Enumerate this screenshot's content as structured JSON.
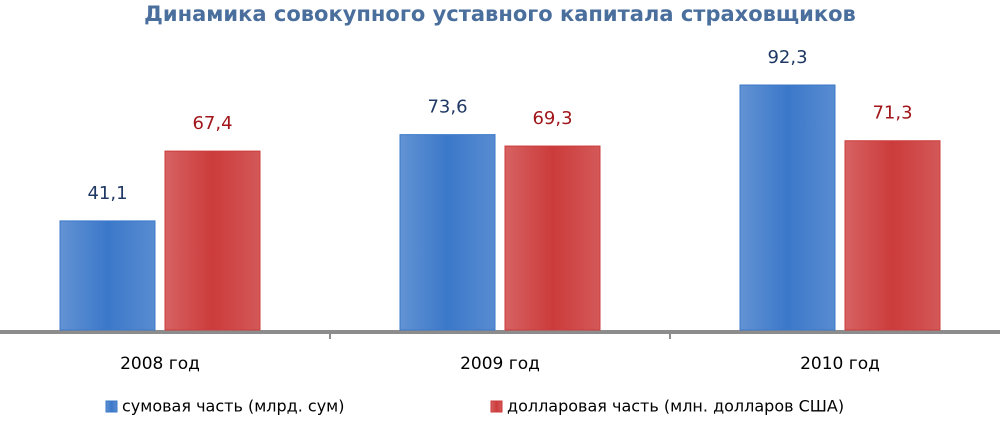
{
  "chart_data": {
    "type": "bar",
    "title": "Динамика совокупного уставного капитала страховщиков",
    "categories": [
      "2008 год",
      "2009 год",
      "2010 год"
    ],
    "series": [
      {
        "name": "сумовая часть (млрд. сум)",
        "color": "#3b78c9",
        "label_color": "#1f3864",
        "values": [
          41.1,
          73.6,
          92.3
        ],
        "value_labels": [
          "41,1",
          "73,6",
          "92,3"
        ]
      },
      {
        "name": "долларовая часть (млн. долларов США)",
        "color": "#cc3b3b",
        "label_color": "#a0161a",
        "values": [
          67.4,
          69.3,
          71.3
        ],
        "value_labels": [
          "67,4",
          "69,3",
          "71,3"
        ]
      }
    ]
  }
}
